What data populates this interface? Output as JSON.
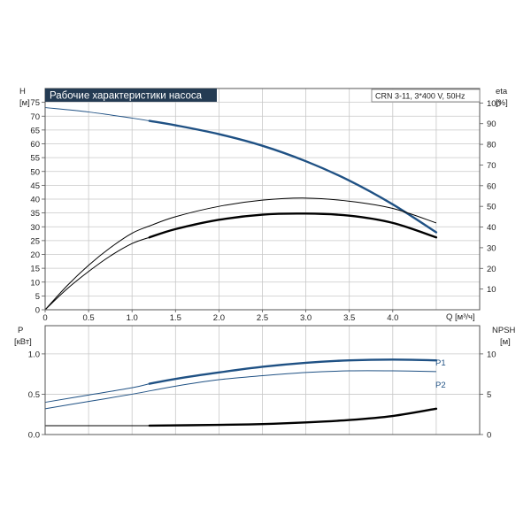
{
  "chart_data": [
    {
      "type": "line",
      "title": "Рабочие характеристики насоса",
      "model_label": "CRN 3-11, 3*400 V, 50Hz",
      "xlabel": "Q [м³/ч]",
      "ylabel_left": "H",
      "ylabel_left_unit": "[м]",
      "ylabel_right": "eta",
      "ylabel_right_unit": "[%]",
      "xlim": [
        0,
        5
      ],
      "ylim_left": [
        0,
        80
      ],
      "ylim_right_scale": [
        0,
        107
      ],
      "x_ticks": [
        "0",
        "0.5",
        "1.0",
        "1.5",
        "2.0",
        "2.5",
        "3.0",
        "3.5",
        "4.0"
      ],
      "left_ticks": [
        "0",
        "5",
        "10",
        "15",
        "20",
        "25",
        "30",
        "35",
        "40",
        "45",
        "50",
        "55",
        "60",
        "65",
        "70",
        "75"
      ],
      "right_ticks": [
        "10",
        "20",
        "30",
        "40",
        "50",
        "60",
        "70",
        "80",
        "90",
        "100"
      ],
      "grid": true,
      "colors": {
        "head": "#1f5184",
        "eta": "#000000"
      },
      "series": [
        {
          "axis": "left",
          "x": [
            0,
            0.5,
            1.0,
            1.2,
            1.5,
            2.0,
            2.5,
            3.0,
            3.5,
            4.0,
            4.5
          ],
          "y": [
            73.1,
            71.5,
            69.3,
            68.3,
            66.7,
            63.5,
            59.3,
            53.7,
            46.7,
            38.1,
            28.0
          ],
          "op_start": 1.2
        },
        {
          "axis": "right",
          "x": [
            0,
            0.25,
            0.5,
            0.75,
            1.0,
            1.2,
            1.5,
            2.0,
            2.5,
            3.0,
            3.5,
            4.0,
            4.5
          ],
          "y": [
            0,
            11.5,
            21.5,
            30,
            37,
            40.5,
            45,
            50,
            53,
            54,
            52.5,
            49,
            42
          ],
          "op_start": 4.6
        },
        {
          "axis": "right",
          "x": [
            0,
            0.25,
            0.5,
            0.75,
            1.0,
            1.2,
            1.5,
            2.0,
            2.5,
            3.0,
            3.5,
            4.0,
            4.5
          ],
          "y": [
            0,
            10,
            18.5,
            26,
            32,
            35,
            39,
            43.5,
            46,
            46.5,
            45.5,
            42,
            35
          ],
          "op_start": 1.2
        }
      ]
    },
    {
      "type": "line",
      "xlabel": "",
      "ylabel_left": "P",
      "ylabel_left_unit": "[кВт]",
      "ylabel_right": "NPSH",
      "ylabel_right_unit": "[м]",
      "xlim": [
        0,
        5
      ],
      "ylim_left": [
        0,
        1.35
      ],
      "ylim_right": [
        0,
        13.5
      ],
      "left_ticks": [
        "0.0",
        "0.5",
        "1.0"
      ],
      "right_ticks": [
        "0",
        "5",
        "10"
      ],
      "grid": true,
      "colors": {
        "power": "#1f5184",
        "npsh": "#000000",
        "labels": "#1f5184"
      },
      "series": [
        {
          "name": "P1",
          "axis": "left",
          "x": [
            0,
            0.5,
            1.0,
            1.2,
            1.5,
            2.0,
            2.5,
            3.0,
            3.5,
            4.0,
            4.5
          ],
          "y": [
            0.4,
            0.49,
            0.58,
            0.63,
            0.69,
            0.77,
            0.84,
            0.89,
            0.92,
            0.93,
            0.92
          ],
          "op_start": 1.2
        },
        {
          "name": "P2",
          "axis": "left",
          "x": [
            0,
            0.5,
            1.0,
            1.5,
            2.0,
            2.5,
            3.0,
            3.5,
            4.0,
            4.5
          ],
          "y": [
            0.32,
            0.41,
            0.5,
            0.6,
            0.68,
            0.73,
            0.77,
            0.79,
            0.79,
            0.78
          ],
          "op_start": 4.6
        },
        {
          "axis": "right",
          "x": [
            0,
            1.0,
            1.2,
            2.0,
            2.5,
            3.0,
            3.5,
            4.0,
            4.5
          ],
          "y": [
            1.1,
            1.1,
            1.1,
            1.2,
            1.3,
            1.5,
            1.8,
            2.3,
            3.2
          ],
          "op_start": 1.2
        }
      ]
    }
  ]
}
